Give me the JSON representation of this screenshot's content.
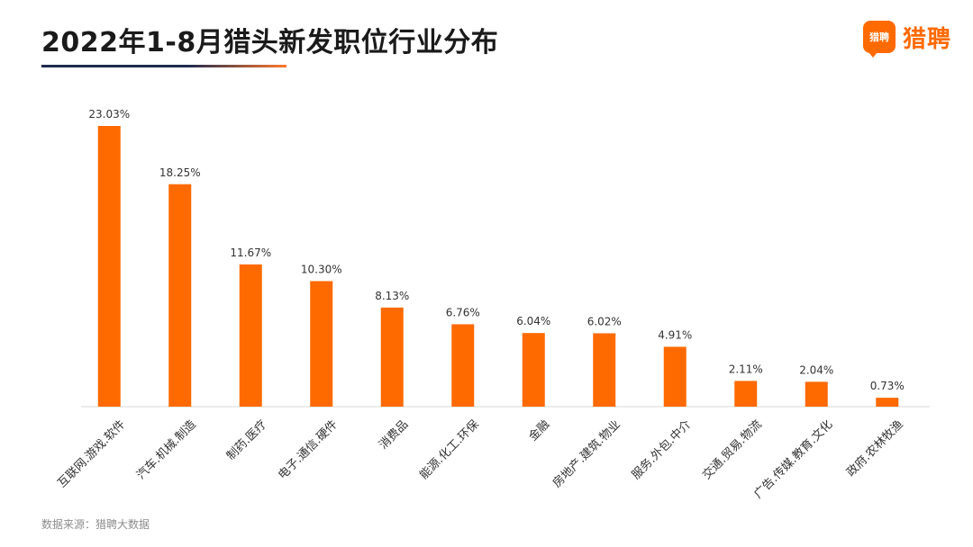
{
  "header": {
    "title": "2022年1-8月猎头新发职位行业分布",
    "logo_badge": "猎聘",
    "logo_text": "猎聘"
  },
  "footer": {
    "source": "数据来源：猎聘大数据"
  },
  "colors": {
    "bar": "#ff6a00",
    "axis": "#d9d9d9",
    "label": "#333333"
  },
  "chart_data": {
    "type": "bar",
    "title": "2022年1-8月猎头新发职位行业分布",
    "xlabel": "",
    "ylabel": "",
    "ylim": [
      0,
      23.03
    ],
    "grid": false,
    "categories": [
      "互联网.游戏.软件",
      "汽车.机械.制造",
      "制药.医疗",
      "电子.通信.硬件",
      "消费品",
      "能源.化工.环保",
      "金融",
      "房地产.建筑.物业",
      "服务.外包.中介",
      "交通.贸易.物流",
      "广告.传媒.教育.文化",
      "政府.农林牧渔"
    ],
    "values": [
      23.03,
      18.25,
      11.67,
      10.3,
      8.13,
      6.76,
      6.04,
      6.02,
      4.91,
      2.11,
      2.04,
      0.73
    ],
    "value_labels": [
      "23.03%",
      "18.25%",
      "11.67%",
      "10.30%",
      "8.13%",
      "6.76%",
      "6.04%",
      "6.02%",
      "4.91%",
      "2.11%",
      "2.04%",
      "0.73%"
    ]
  }
}
